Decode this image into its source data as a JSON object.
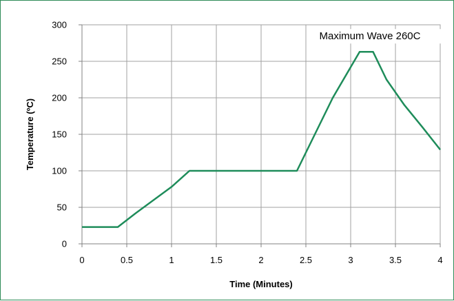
{
  "chart_data": {
    "type": "line",
    "title": "",
    "xlabel": "Time (Minutes)",
    "ylabel": "Temperature (ºC)",
    "xlim": [
      0,
      4
    ],
    "ylim": [
      0,
      300
    ],
    "x_ticks": [
      0,
      0.5,
      1,
      1.5,
      2,
      2.5,
      3,
      3.5,
      4
    ],
    "x_tick_labels": [
      "0",
      "0.5",
      "1",
      "1.5",
      "2",
      "2.5",
      "3",
      "3.5",
      "4"
    ],
    "y_ticks": [
      0,
      50,
      100,
      150,
      200,
      250,
      300
    ],
    "y_tick_labels": [
      "0",
      "50",
      "100",
      "150",
      "200",
      "250",
      "300"
    ],
    "grid": true,
    "legend": "none",
    "series": [
      {
        "color": "#1e8c5a",
        "x": [
          0,
          0.4,
          0.6,
          0.8,
          1.0,
          1.2,
          2.4,
          2.6,
          2.8,
          3.1,
          3.25,
          3.4,
          3.6,
          3.8,
          4.0
        ],
        "y": [
          23,
          23,
          42,
          60,
          78,
          100,
          100,
          150,
          200,
          263,
          263,
          225,
          190,
          160,
          129
        ]
      }
    ],
    "annotations": [
      {
        "text": "Maximum Wave 260C",
        "x": 2.65,
        "y": 280
      }
    ]
  }
}
